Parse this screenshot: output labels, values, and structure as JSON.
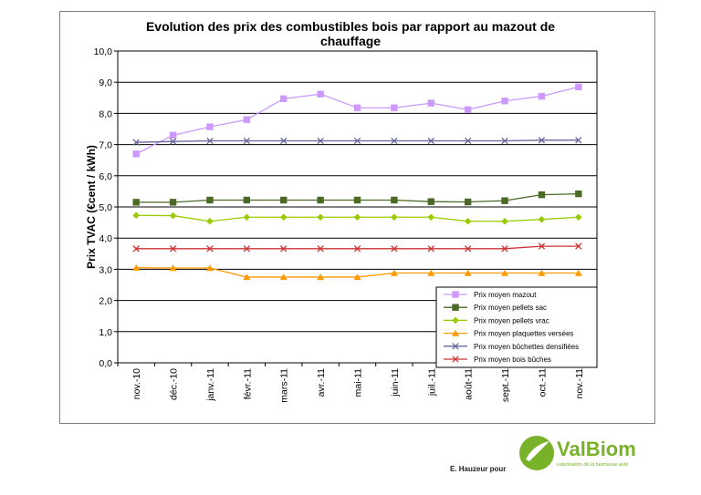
{
  "footer": {
    "credit": "E. Hauzeur pour",
    "logo_text": "ValBiom",
    "logo_tagline": "valorisation de la biomasse asbl"
  },
  "colors": {
    "mazout": "#cc99ff",
    "pellets_sac": "#4a6a25",
    "pellets_vrac": "#99cc00",
    "plaquettes": "#ff9900",
    "buchettes": "#666699",
    "buches": "#cc3333",
    "gridline": "#000000",
    "logo_green": "#77b229"
  },
  "chart_data": {
    "type": "line",
    "title": [
      "Evolution des prix des combustibles bois par rapport au mazout de",
      "chauffage"
    ],
    "ylabel": "Prix TVAC (€cent / kWh)",
    "xlabel": "",
    "ylim": [
      0,
      10
    ],
    "yticks": [
      "0,0",
      "1,0",
      "2,0",
      "3,0",
      "4,0",
      "5,0",
      "6,0",
      "7,0",
      "8,0",
      "9,0",
      "10,0"
    ],
    "grid": "horizontal",
    "legend_position": "bottom-right",
    "categories": [
      "nov.-10",
      "déc.-10",
      "janv.-11",
      "févr.-11",
      "mars-11",
      "avr.-11",
      "mai-11",
      "juin-11",
      "juil.-11",
      "août-11",
      "sept.-11",
      "oct.-11",
      "nov.-11"
    ],
    "series": [
      {
        "name": "Prix moyen mazout",
        "color": "#cc99ff",
        "marker": "square",
        "values": [
          6.7,
          7.3,
          7.57,
          7.8,
          8.47,
          8.62,
          8.18,
          8.18,
          8.33,
          8.12,
          8.4,
          8.55,
          8.85
        ]
      },
      {
        "name": "Prix moyen pellets sac",
        "color": "#4a6a25",
        "marker": "square",
        "values": [
          5.15,
          5.15,
          5.22,
          5.22,
          5.22,
          5.22,
          5.22,
          5.22,
          5.17,
          5.16,
          5.2,
          5.39,
          5.42
        ]
      },
      {
        "name": "Prix moyen pellets vrac",
        "color": "#99cc00",
        "marker": "diamond",
        "values": [
          4.73,
          4.72,
          4.54,
          4.67,
          4.67,
          4.67,
          4.67,
          4.67,
          4.67,
          4.54,
          4.54,
          4.6,
          4.67
        ]
      },
      {
        "name": "Prix moyen plaquettes versées",
        "color": "#ff9900",
        "marker": "triangle",
        "values": [
          3.05,
          3.04,
          3.04,
          2.75,
          2.75,
          2.75,
          2.75,
          2.88,
          2.88,
          2.88,
          2.88,
          2.88,
          2.88
        ]
      },
      {
        "name": "Prix moyen bûchettes densifiées",
        "color": "#666699",
        "marker": "x",
        "values": [
          7.07,
          7.1,
          7.12,
          7.12,
          7.12,
          7.12,
          7.12,
          7.12,
          7.12,
          7.12,
          7.12,
          7.14,
          7.14
        ]
      },
      {
        "name": "Prix moyen bois bûches",
        "color": "#cc3333",
        "marker": "x",
        "values": [
          3.66,
          3.66,
          3.66,
          3.66,
          3.66,
          3.66,
          3.66,
          3.66,
          3.66,
          3.66,
          3.66,
          3.74,
          3.74
        ]
      }
    ]
  }
}
